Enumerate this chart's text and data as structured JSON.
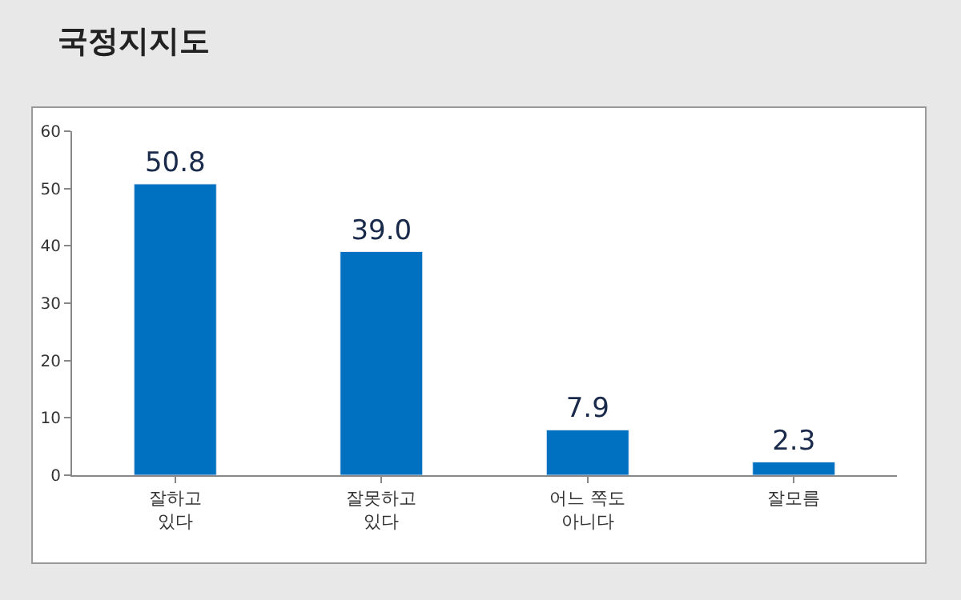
{
  "chart_data": {
    "type": "bar",
    "title": "국정지지도",
    "categories": [
      "잘하고\n있다",
      "잘못하고\n있다",
      "어느 쪽도\n아니다",
      "잘모름"
    ],
    "values": [
      50.8,
      39.0,
      7.9,
      2.3
    ],
    "value_labels": [
      "50.8",
      "39.0",
      "7.9",
      "2.3"
    ],
    "color": "#0070c0",
    "ylim": [
      0,
      60
    ],
    "yticks": [
      0,
      10,
      20,
      30,
      40,
      50,
      60
    ]
  }
}
